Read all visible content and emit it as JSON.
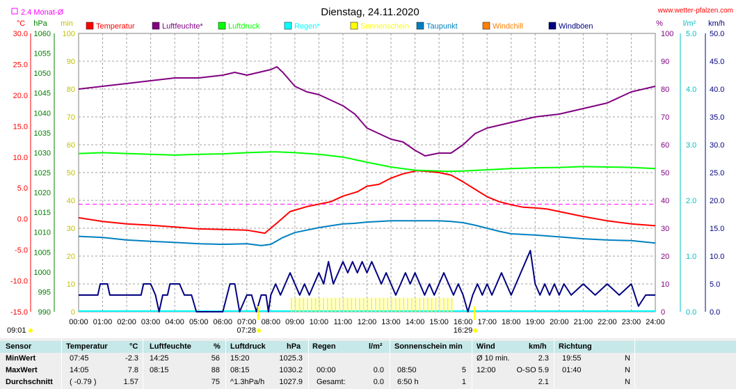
{
  "header": {
    "title": "Dienstag, 24.11.2020",
    "site": "www.wetter-pfalzen.com",
    "avg_label": "2.4 Monat-Ø",
    "sunrise": "07:28",
    "sunset": "16:29",
    "cursor_time": "09:01"
  },
  "axis_units": {
    "temp": "°C",
    "pressure": "hPa",
    "sun": "min",
    "humidity": "%",
    "rain": "l/m²",
    "wind": "km/h"
  },
  "legend": [
    {
      "name": "Temperatur",
      "color": "#ff0000"
    },
    {
      "name": "Luftfeuchte*",
      "color": "#800080"
    },
    {
      "name": "Luftdruck",
      "color": "#00ff00"
    },
    {
      "name": "Regen*",
      "color": "#00ffff"
    },
    {
      "name": "Sonnenschein",
      "color": "#ffff00"
    },
    {
      "name": "Taupunkt",
      "color": "#0080c0"
    },
    {
      "name": "Windchill",
      "color": "#ff8000"
    },
    {
      "name": "Windböen",
      "color": "#000080"
    }
  ],
  "chart_data": {
    "type": "line",
    "x_ticks": [
      "00:00",
      "01:00",
      "02:00",
      "03:00",
      "04:00",
      "05:00",
      "06:00",
      "07:00",
      "08:00",
      "09:00",
      "10:00",
      "11:00",
      "12:00",
      "13:00",
      "14:00",
      "15:00",
      "16:00",
      "17:00",
      "18:00",
      "19:00",
      "20:00",
      "21:00",
      "22:00",
      "23:00",
      "24:00"
    ],
    "axes": {
      "temp": {
        "range": [
          -15,
          30
        ],
        "ticks": [
          "30.0",
          "25.0",
          "20.0",
          "15.0",
          "10.0",
          "5.0",
          "0.0",
          "-5.0",
          "-10.0",
          "-15.0"
        ]
      },
      "pressure": {
        "range": [
          990,
          1060
        ],
        "ticks": [
          "1060",
          "1055",
          "1050",
          "1045",
          "1040",
          "1035",
          "1030",
          "1025",
          "1020",
          "1015",
          "1010",
          "1005",
          "1000",
          "995",
          "990"
        ]
      },
      "sun": {
        "range": [
          0,
          100
        ],
        "ticks": [
          "100",
          "90",
          "80",
          "70",
          "60",
          "50",
          "40",
          "30",
          "20",
          "10",
          "0"
        ]
      },
      "humidity": {
        "range": [
          0,
          100
        ],
        "ticks": [
          "100",
          "90",
          "80",
          "70",
          "60",
          "50",
          "40",
          "30",
          "20",
          "10",
          "0"
        ]
      },
      "rain": {
        "range": [
          0,
          5
        ],
        "ticks": [
          "5.0",
          "4.0",
          "3.0",
          "2.0",
          "1.0",
          "0.0"
        ]
      },
      "wind": {
        "range": [
          0,
          50
        ],
        "ticks": [
          "50.0",
          "45.0",
          "40.0",
          "35.0",
          "30.0",
          "25.0",
          "20.0",
          "15.0",
          "10.0",
          "5.0",
          "0.0"
        ]
      }
    },
    "monthly_avg_temp": 2.4,
    "series": [
      {
        "name": "Temperatur",
        "axis": "temp",
        "color": "#ff0000",
        "points": [
          [
            0,
            0.2
          ],
          [
            1,
            -0.4
          ],
          [
            2,
            -0.8
          ],
          [
            3,
            -1.0
          ],
          [
            4,
            -1.3
          ],
          [
            5,
            -1.6
          ],
          [
            6,
            -1.7
          ],
          [
            7,
            -1.8
          ],
          [
            7.75,
            -2.3
          ],
          [
            8.3,
            -0.5
          ],
          [
            8.8,
            1.2
          ],
          [
            9.5,
            2.0
          ],
          [
            10.5,
            2.8
          ],
          [
            11,
            3.7
          ],
          [
            11.6,
            4.4
          ],
          [
            12,
            5.3
          ],
          [
            12.5,
            5.6
          ],
          [
            13,
            6.6
          ],
          [
            13.5,
            7.3
          ],
          [
            14.08,
            7.8
          ],
          [
            14.5,
            7.7
          ],
          [
            15,
            7.5
          ],
          [
            15.5,
            7.1
          ],
          [
            16,
            6.0
          ],
          [
            16.5,
            4.8
          ],
          [
            17,
            3.6
          ],
          [
            17.5,
            2.8
          ],
          [
            18,
            2.3
          ],
          [
            18.5,
            1.9
          ],
          [
            19,
            1.8
          ],
          [
            19.5,
            1.6
          ],
          [
            20,
            1.2
          ],
          [
            21,
            0.4
          ],
          [
            22,
            -0.3
          ],
          [
            23,
            -0.8
          ],
          [
            24,
            -1.1
          ]
        ]
      },
      {
        "name": "Luftfeuchte*",
        "axis": "humidity",
        "color": "#800080",
        "points": [
          [
            0,
            80
          ],
          [
            1,
            81
          ],
          [
            2,
            82
          ],
          [
            3,
            83
          ],
          [
            4,
            84
          ],
          [
            5,
            84
          ],
          [
            6,
            85
          ],
          [
            6.5,
            86
          ],
          [
            7,
            85
          ],
          [
            7.5,
            86
          ],
          [
            8,
            87
          ],
          [
            8.25,
            88
          ],
          [
            8.5,
            86
          ],
          [
            9,
            81
          ],
          [
            9.5,
            79
          ],
          [
            10,
            78
          ],
          [
            11,
            74
          ],
          [
            11.5,
            71
          ],
          [
            12,
            66
          ],
          [
            12.5,
            64
          ],
          [
            13,
            62
          ],
          [
            13.5,
            61
          ],
          [
            14,
            58
          ],
          [
            14.42,
            56
          ],
          [
            15,
            57
          ],
          [
            15.5,
            57
          ],
          [
            16,
            60
          ],
          [
            16.5,
            64
          ],
          [
            17,
            66
          ],
          [
            17.5,
            67
          ],
          [
            18,
            68
          ],
          [
            18.5,
            69
          ],
          [
            19,
            70
          ],
          [
            20,
            71
          ],
          [
            21,
            73
          ],
          [
            22,
            75
          ],
          [
            23,
            79
          ],
          [
            24,
            81
          ]
        ]
      },
      {
        "name": "Luftdruck",
        "axis": "pressure",
        "color": "#00ff00",
        "points": [
          [
            0,
            1029.8
          ],
          [
            1,
            1030.0
          ],
          [
            2,
            1029.8
          ],
          [
            3,
            1029.6
          ],
          [
            4,
            1029.4
          ],
          [
            5,
            1029.6
          ],
          [
            6,
            1029.7
          ],
          [
            7,
            1030.0
          ],
          [
            8,
            1030.2
          ],
          [
            8.25,
            1030.2
          ],
          [
            9,
            1030.0
          ],
          [
            10,
            1029.6
          ],
          [
            11,
            1028.9
          ],
          [
            12,
            1027.6
          ],
          [
            13,
            1026.4
          ],
          [
            14,
            1025.6
          ],
          [
            15.33,
            1025.3
          ],
          [
            16,
            1025.4
          ],
          [
            17,
            1025.7
          ],
          [
            18,
            1026.0
          ],
          [
            19,
            1026.2
          ],
          [
            20,
            1026.3
          ],
          [
            21,
            1026.5
          ],
          [
            22,
            1026.4
          ],
          [
            23,
            1026.3
          ],
          [
            24,
            1026.0
          ]
        ]
      },
      {
        "name": "Taupunkt",
        "axis": "temp",
        "color": "#0080c0",
        "points": [
          [
            0,
            -2.8
          ],
          [
            1,
            -3.0
          ],
          [
            2,
            -3.4
          ],
          [
            3,
            -3.6
          ],
          [
            4,
            -3.8
          ],
          [
            5,
            -4.0
          ],
          [
            6,
            -4.1
          ],
          [
            7,
            -4.0
          ],
          [
            7.6,
            -4.3
          ],
          [
            8,
            -4.1
          ],
          [
            8.5,
            -3.0
          ],
          [
            9,
            -2.2
          ],
          [
            9.5,
            -1.8
          ],
          [
            10,
            -1.4
          ],
          [
            10.5,
            -1.1
          ],
          [
            11,
            -0.8
          ],
          [
            11.5,
            -0.7
          ],
          [
            12,
            -0.5
          ],
          [
            12.5,
            -0.4
          ],
          [
            13,
            -0.3
          ],
          [
            13.5,
            -0.3
          ],
          [
            14,
            -0.3
          ],
          [
            14.5,
            -0.3
          ],
          [
            15,
            -0.3
          ],
          [
            15.5,
            -0.4
          ],
          [
            16,
            -0.6
          ],
          [
            16.5,
            -1.0
          ],
          [
            17,
            -1.5
          ],
          [
            17.5,
            -2.0
          ],
          [
            18,
            -2.4
          ],
          [
            18.5,
            -2.5
          ],
          [
            19,
            -2.6
          ],
          [
            20,
            -2.9
          ],
          [
            21,
            -3.2
          ],
          [
            22,
            -3.4
          ],
          [
            23,
            -3.5
          ],
          [
            24,
            -3.9
          ]
        ]
      },
      {
        "name": "Windböen",
        "axis": "wind",
        "color": "#000080",
        "points": [
          [
            0,
            3
          ],
          [
            0.8,
            3
          ],
          [
            0.9,
            5
          ],
          [
            1.2,
            5
          ],
          [
            1.3,
            3
          ],
          [
            2,
            3
          ],
          [
            2.6,
            3
          ],
          [
            2.7,
            5
          ],
          [
            3.0,
            5
          ],
          [
            3.2,
            3
          ],
          [
            3.35,
            0
          ],
          [
            3.5,
            3
          ],
          [
            3.7,
            3
          ],
          [
            3.8,
            5
          ],
          [
            4.2,
            5
          ],
          [
            4.4,
            3
          ],
          [
            4.7,
            3
          ],
          [
            4.9,
            0
          ],
          [
            5.2,
            0
          ],
          [
            5.5,
            0
          ],
          [
            6.0,
            0
          ],
          [
            6.3,
            5
          ],
          [
            6.5,
            5
          ],
          [
            6.7,
            0
          ],
          [
            7.0,
            3
          ],
          [
            7.2,
            3
          ],
          [
            7.4,
            0
          ],
          [
            7.6,
            3
          ],
          [
            7.8,
            3
          ],
          [
            7.9,
            0
          ],
          [
            8.0,
            3
          ],
          [
            8.2,
            5
          ],
          [
            8.4,
            3
          ],
          [
            8.6,
            5
          ],
          [
            8.8,
            7
          ],
          [
            9.0,
            5
          ],
          [
            9.2,
            3
          ],
          [
            9.4,
            5
          ],
          [
            9.6,
            3
          ],
          [
            9.8,
            5
          ],
          [
            10.0,
            7
          ],
          [
            10.2,
            5
          ],
          [
            10.4,
            9
          ],
          [
            10.6,
            5
          ],
          [
            10.8,
            7
          ],
          [
            11.0,
            9
          ],
          [
            11.2,
            7
          ],
          [
            11.4,
            9
          ],
          [
            11.6,
            7
          ],
          [
            11.8,
            9
          ],
          [
            12.0,
            7
          ],
          [
            12.2,
            9
          ],
          [
            12.4,
            7
          ],
          [
            12.6,
            5
          ],
          [
            12.8,
            7
          ],
          [
            13.0,
            5
          ],
          [
            13.2,
            3
          ],
          [
            13.4,
            5
          ],
          [
            13.6,
            7
          ],
          [
            13.8,
            5
          ],
          [
            14.0,
            7
          ],
          [
            14.2,
            5
          ],
          [
            14.4,
            3
          ],
          [
            14.6,
            5
          ],
          [
            14.8,
            3
          ],
          [
            15.0,
            5
          ],
          [
            15.2,
            7
          ],
          [
            15.4,
            5
          ],
          [
            15.6,
            3
          ],
          [
            15.8,
            5
          ],
          [
            16.0,
            3
          ],
          [
            16.2,
            0
          ],
          [
            16.4,
            3
          ],
          [
            16.6,
            5
          ],
          [
            16.8,
            3
          ],
          [
            17.0,
            5
          ],
          [
            17.2,
            3
          ],
          [
            17.4,
            5
          ],
          [
            17.6,
            7
          ],
          [
            17.8,
            5
          ],
          [
            18.0,
            3
          ],
          [
            18.2,
            5
          ],
          [
            18.4,
            7
          ],
          [
            18.6,
            9
          ],
          [
            18.8,
            11
          ],
          [
            19.0,
            5
          ],
          [
            19.2,
            3
          ],
          [
            19.4,
            5
          ],
          [
            19.6,
            3
          ],
          [
            19.8,
            5
          ],
          [
            20.0,
            3
          ],
          [
            20.2,
            5
          ],
          [
            20.5,
            3
          ],
          [
            21,
            5
          ],
          [
            21.5,
            3
          ],
          [
            22,
            5
          ],
          [
            22.5,
            3
          ],
          [
            23,
            5
          ],
          [
            23.3,
            1
          ],
          [
            23.6,
            3
          ],
          [
            24,
            3
          ]
        ]
      }
    ],
    "sunshine_bars": {
      "color": "#ffff00",
      "start": 8.83,
      "end": 15.5,
      "value_min": 5
    },
    "sunrise_hour": 7.47,
    "sunset_hour": 16.48
  },
  "table": {
    "headers": {
      "sensor": "Sensor",
      "temp": "Temperatur",
      "temp_unit": "°C",
      "hum": "Luftfeuchte",
      "hum_unit": "%",
      "press": "Luftdruck",
      "press_unit": "hPa",
      "rain": "Regen",
      "rain_unit": "l/m²",
      "sun": "Sonnenschein min",
      "wind": "Wind",
      "wind_unit": "km/h",
      "dir": "Richtung"
    },
    "rows": [
      {
        "label": "MinWert",
        "t_time": "07:45",
        "t_val": "-2.3",
        "h_time": "14:25",
        "h_val": "56",
        "p_time": "15:20",
        "p_val": "1025.3",
        "r_time": "",
        "r_val": "",
        "s_time": "",
        "s_val": "",
        "w_time": "Ø 10 min.",
        "w_val": "2.3",
        "d_time": "19:55",
        "d_val": "N"
      },
      {
        "label": "MaxWert",
        "t_time": "14:05",
        "t_val": "7.8",
        "h_time": "08:15",
        "h_val": "88",
        "p_time": "08:15",
        "p_val": "1030.2",
        "r_time": "00:00",
        "r_val": "0.0",
        "s_time": "08:50",
        "s_val": "5",
        "w_time": "12:00",
        "w_val": "O-SO 5.9",
        "d_time": "01:40",
        "d_val": "N"
      },
      {
        "label": "Durchschnitt",
        "t_time": "( -0.79 )",
        "t_val": "1.57",
        "h_time": "",
        "h_val": "75",
        "p_time": "^1.3hPa/h",
        "p_val": "1027.9",
        "r_time": "Gesamt:",
        "r_val": "0.0",
        "s_time": "6:50 h",
        "s_val": "1",
        "w_time": "",
        "w_val": "2.1",
        "d_time": "",
        "d_val": "N"
      }
    ]
  }
}
